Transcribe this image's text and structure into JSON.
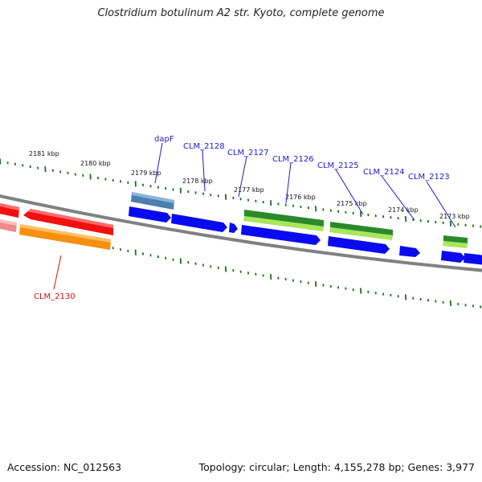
{
  "title": "Clostridium botulinum A2 str. Kyoto, complete genome",
  "footer": {
    "accession": "Accession: NC_012563",
    "summary": "Topology: circular; Length: 4,155,278 bp; Genes: 3,977"
  },
  "scale_labels": [
    "2181 kbp",
    "2180 kbp",
    "2179 kbp",
    "2178 kbp",
    "2177 kbp",
    "2176 kbp",
    "2175 kbp",
    "2174 kbp",
    "2173 kbp"
  ],
  "gene_labels": {
    "dapF": "dapF",
    "clm2128": "CLM_2128",
    "clm2127": "CLM_2127",
    "clm2126": "CLM_2126",
    "clm2125": "CLM_2125",
    "clm2124": "CLM_2124",
    "clm2123": "CLM_2123",
    "clm2130": "CLM_2130"
  },
  "colors": {
    "backbone": "#808080",
    "tick": "#1e6e1e",
    "cds_blue": "#0a0af0",
    "gene_green": "#2a8a2a",
    "gene_lightgreen": "#a8e65a",
    "gene_red": "#f01010",
    "gene_pink": "#f08a8a",
    "gene_orange": "#f59010",
    "gene_steel": "#4a7fb0",
    "label_blue": "#1a1ad0",
    "label_red": "#d01010"
  }
}
